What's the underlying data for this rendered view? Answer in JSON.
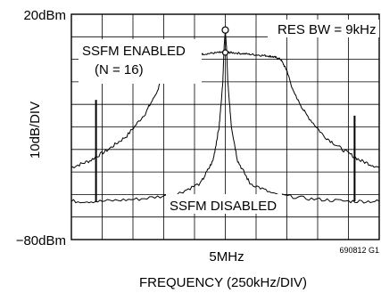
{
  "chart_data": {
    "type": "line",
    "ylabel": "10dB/DIV",
    "xlabel": "FREQUENCY (250kHz/DIV)",
    "y_top_label": "20dBm",
    "y_bottom_label": "−80dBm",
    "ylim": [
      -80,
      20
    ],
    "x_center_label": "5MHz",
    "x_center_mhz": 5.0,
    "x_div_khz": 250,
    "xlim": [
      3.75,
      6.25
    ],
    "grid": true,
    "annotations": {
      "res_bw": "RES BW = 9kHz",
      "enabled_line1": "SSFM ENABLED",
      "enabled_line2": "(N = 16)",
      "disabled": "SSFM DISABLED",
      "figure_id": "690812 G1"
    },
    "series": [
      {
        "name": "SSFM ENABLED",
        "x": [
          3.75,
          3.9,
          4.05,
          4.2,
          4.35,
          4.45,
          4.5,
          4.55,
          4.6,
          4.65,
          4.75,
          4.85,
          4.95,
          5.0,
          5.05,
          5.15,
          5.25,
          5.35,
          5.4,
          5.45,
          5.5,
          5.55,
          5.65,
          5.8,
          5.95,
          6.1,
          6.25
        ],
        "y": [
          -48,
          -45,
          -40,
          -34,
          -24,
          -14,
          -5,
          0,
          1,
          1.5,
          2,
          2.5,
          3,
          3,
          3,
          2.5,
          2,
          1.5,
          1,
          0,
          -5,
          -14,
          -24,
          -34,
          -40,
          -45,
          -48
        ]
      },
      {
        "name": "SSFM DISABLED",
        "x": [
          3.75,
          4.0,
          4.3,
          4.6,
          4.8,
          4.9,
          4.95,
          4.98,
          4.99,
          5.0,
          5.01,
          5.02,
          5.05,
          5.1,
          5.2,
          5.4,
          5.7,
          6.0,
          6.25
        ],
        "y": [
          -63,
          -63,
          -62,
          -60,
          -55,
          -45,
          -30,
          -10,
          5,
          13,
          5,
          -10,
          -30,
          -45,
          -55,
          -60,
          -62,
          -63,
          -63
        ]
      }
    ],
    "spurs": [
      {
        "x": 3.95,
        "y": -18
      },
      {
        "x": 6.05,
        "y": -25
      }
    ]
  }
}
